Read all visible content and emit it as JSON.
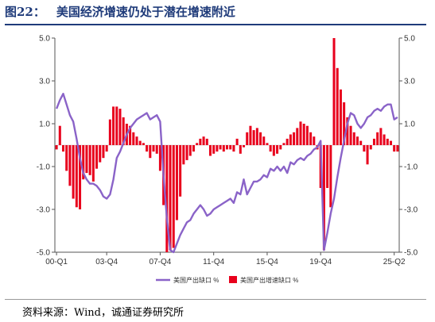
{
  "title": {
    "figure_no": "图22：",
    "text": "美国经济增速仍处于潜在增速附近"
  },
  "source": "资料来源：Wind，诚通证券研究所",
  "colors": {
    "line": "#8a63c8",
    "bar": "#e8001c",
    "title": "#1f3b7a"
  },
  "chart_data": {
    "type": "bar+line",
    "title": "",
    "xlabel": "",
    "ylabel": "",
    "ylim": [
      -5,
      5
    ],
    "y2lim": [
      -5,
      5
    ],
    "y_ticks": [
      "5.0",
      "3.0",
      "1.0",
      "-1.0",
      "-3.0",
      "-5.0"
    ],
    "y2_ticks": [
      "5.0",
      "3.0",
      "1.0",
      "-1.0",
      "-3.0",
      "-5.0"
    ],
    "x_tick_labels": [
      "00-Q1",
      "03-Q4",
      "07-Q4",
      "11-Q4",
      "15-Q4",
      "19-Q4",
      "25-Q2"
    ],
    "x_tick_index": [
      0,
      15,
      31,
      47,
      63,
      79,
      101
    ],
    "legend": [
      "美国产出缺口 %",
      "美国产出增速缺口 %"
    ],
    "legend_position": "bottom",
    "series": [
      {
        "name": "美国产出缺口 %",
        "type": "line",
        "axis": "left",
        "values": [
          1.7,
          2.1,
          2.4,
          1.9,
          1.4,
          1.1,
          0.3,
          -0.6,
          -1.3,
          -1.6,
          -1.8,
          -1.8,
          -1.9,
          -2.1,
          -2.4,
          -2.5,
          -2.3,
          -1.6,
          -0.6,
          -0.3,
          0.1,
          0.5,
          0.8,
          1.0,
          1.2,
          1.3,
          1.4,
          1.5,
          1.2,
          1.3,
          1.4,
          1.1,
          -1.4,
          -3.4,
          -4.9,
          -5.0,
          -4.6,
          -4.2,
          -3.9,
          -3.6,
          -3.5,
          -3.2,
          -3.0,
          -2.8,
          -3.0,
          -3.3,
          -3.2,
          -3.0,
          -2.9,
          -2.8,
          -2.7,
          -2.6,
          -2.5,
          -2.7,
          -2.2,
          -2.3,
          -1.6,
          -2.3,
          -2.0,
          -1.7,
          -1.7,
          -1.6,
          -1.4,
          -1.5,
          -1.1,
          -1.2,
          -1.0,
          -1.2,
          -1.0,
          -1.3,
          -0.8,
          -0.9,
          -0.7,
          -0.6,
          -0.7,
          -0.5,
          -0.4,
          -0.2,
          -0.1,
          0.2,
          -4.9,
          -4.1,
          -3.2,
          -2.5,
          -1.5,
          -0.6,
          0.2,
          1.0,
          1.5,
          1.4,
          1.0,
          0.8,
          1.0,
          1.3,
          1.4,
          1.6,
          1.7,
          1.6,
          1.8,
          1.9,
          1.9,
          1.2,
          1.3
        ]
      },
      {
        "name": "美国产出增速缺口 %",
        "type": "bar",
        "axis": "right",
        "values": [
          -0.2,
          0.9,
          -0.3,
          -1.2,
          -1.9,
          -2.5,
          -2.9,
          -3.0,
          -1.6,
          -1.3,
          -1.4,
          -1.7,
          -1.1,
          -0.8,
          -0.6,
          -0.3,
          1.2,
          1.8,
          1.8,
          1.7,
          1.3,
          1.0,
          0.9,
          0.6,
          0.4,
          0.2,
          0.1,
          -0.3,
          -0.6,
          -0.3,
          -0.4,
          -1.2,
          -2.8,
          -5.0,
          -4.9,
          -4.8,
          -3.5,
          -2.4,
          -0.9,
          -0.7,
          -0.5,
          -0.3,
          0.1,
          0.3,
          0.4,
          0.3,
          -0.5,
          -0.4,
          -0.3,
          -0.2,
          -0.3,
          -0.2,
          -0.2,
          -0.3,
          0.3,
          -0.4,
          -0.1,
          0.6,
          0.9,
          0.7,
          0.8,
          0.6,
          0.4,
          0.1,
          -0.3,
          -0.5,
          -0.4,
          -0.2,
          0.1,
          0.3,
          0.5,
          0.6,
          0.8,
          1.1,
          1.0,
          0.9,
          0.6,
          0.4,
          -0.2,
          -2.0,
          -4.9,
          -2.0,
          -2.9,
          5.0,
          3.6,
          2.6,
          2.0,
          1.3,
          0.9,
          0.6,
          0.4,
          0.2,
          -0.3,
          -0.9,
          -0.2,
          0.3,
          0.6,
          0.8,
          0.5,
          0.3,
          0.2,
          -0.3,
          -0.3
        ]
      }
    ]
  }
}
